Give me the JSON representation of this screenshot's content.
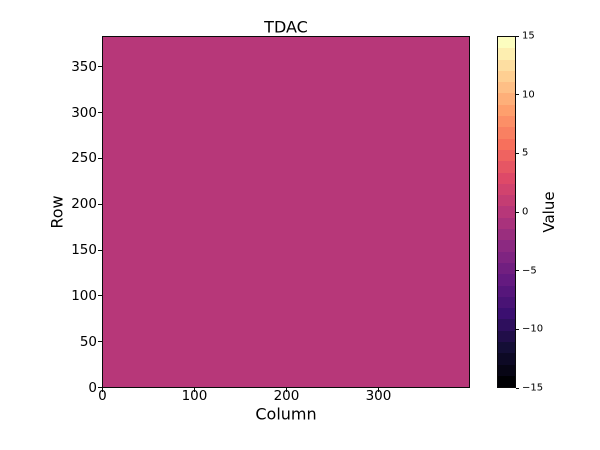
{
  "figure": {
    "background_color": "#ffffff",
    "text_color": "#000000"
  },
  "chart_data": {
    "type": "heatmap",
    "title": "TDAC",
    "xlabel": "Column",
    "ylabel": "Row",
    "colorbar_label": "Value",
    "x_range": [
      -0.5,
      399.5
    ],
    "y_range": [
      -0.5,
      383.5
    ],
    "x_ticks": [
      0,
      100,
      200,
      300
    ],
    "y_ticks": [
      0,
      50,
      100,
      150,
      200,
      250,
      300,
      350
    ],
    "value_range": [
      -15,
      15
    ],
    "colorbar_ticks": [
      {
        "value": 15,
        "label": "15"
      },
      {
        "value": 10,
        "label": "10"
      },
      {
        "value": 5,
        "label": "5"
      },
      {
        "value": 0,
        "label": "0"
      },
      {
        "value": -5,
        "label": "−5"
      },
      {
        "value": -10,
        "label": "−10"
      },
      {
        "value": -15,
        "label": "−15"
      }
    ],
    "colormap_name": "magma",
    "n_levels": 31,
    "colormap_levels_low_to_high": [
      "#000004",
      "#070515",
      "#0d0925",
      "#140e36",
      "#210e49",
      "#2e0f5d",
      "#3b0f70",
      "#491375",
      "#56167b",
      "#641a80",
      "#711f80",
      "#7f2481",
      "#8c2981",
      "#9a2e7e",
      "#a9327c",
      "#b73779",
      "#c43d73",
      "#d1436e",
      "#de4968",
      "#e65664",
      "#ef6360",
      "#f7705c",
      "#f98062",
      "#fc8f67",
      "#fe9f6d",
      "#feaf79",
      "#febf86",
      "#fecf92",
      "#fddea1",
      "#fdeeb0",
      "#fcfdbf"
    ],
    "uniform_value": 0,
    "uniform_fill_color": "#b73779",
    "grid": false,
    "legend": "none"
  }
}
